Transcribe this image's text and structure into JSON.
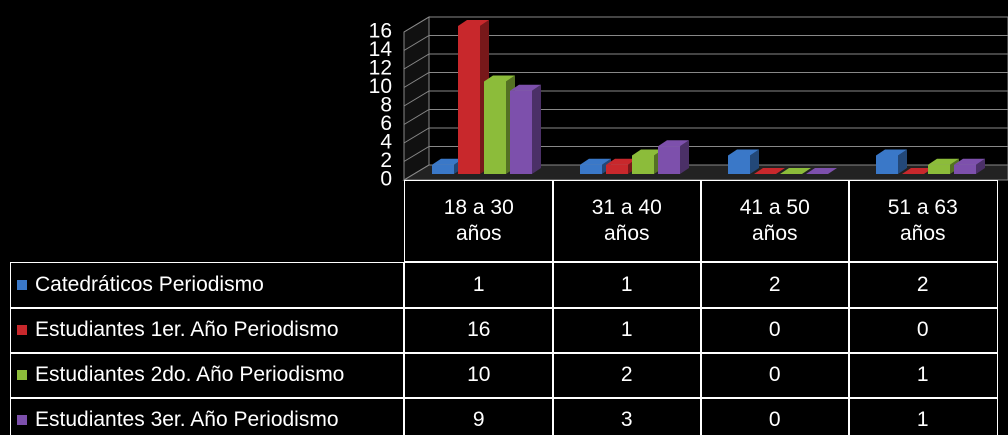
{
  "chart_data": {
    "type": "bar3d",
    "categories": [
      "18 a 30 años",
      "31 a 40 años",
      "41 a 50 años",
      "51 a 63 años"
    ],
    "series": [
      {
        "name": "Catedráticos Periodismo",
        "color": "#3a78c8",
        "values": [
          1,
          1,
          2,
          2
        ]
      },
      {
        "name": "Estudiantes 1er. Año Periodismo",
        "color": "#c8282c",
        "values": [
          16,
          1,
          0,
          0
        ]
      },
      {
        "name": "Estudiantes 2do. Año Periodismo",
        "color": "#8cbc3a",
        "values": [
          10,
          2,
          0,
          1
        ]
      },
      {
        "name": "Estudiantes 3er. Año Periodismo",
        "color": "#7d50ac",
        "values": [
          9,
          3,
          0,
          1
        ]
      }
    ],
    "ylim": [
      0,
      16
    ],
    "yticks": [
      0,
      2,
      4,
      6,
      8,
      10,
      12,
      14,
      16
    ],
    "grid": true
  }
}
